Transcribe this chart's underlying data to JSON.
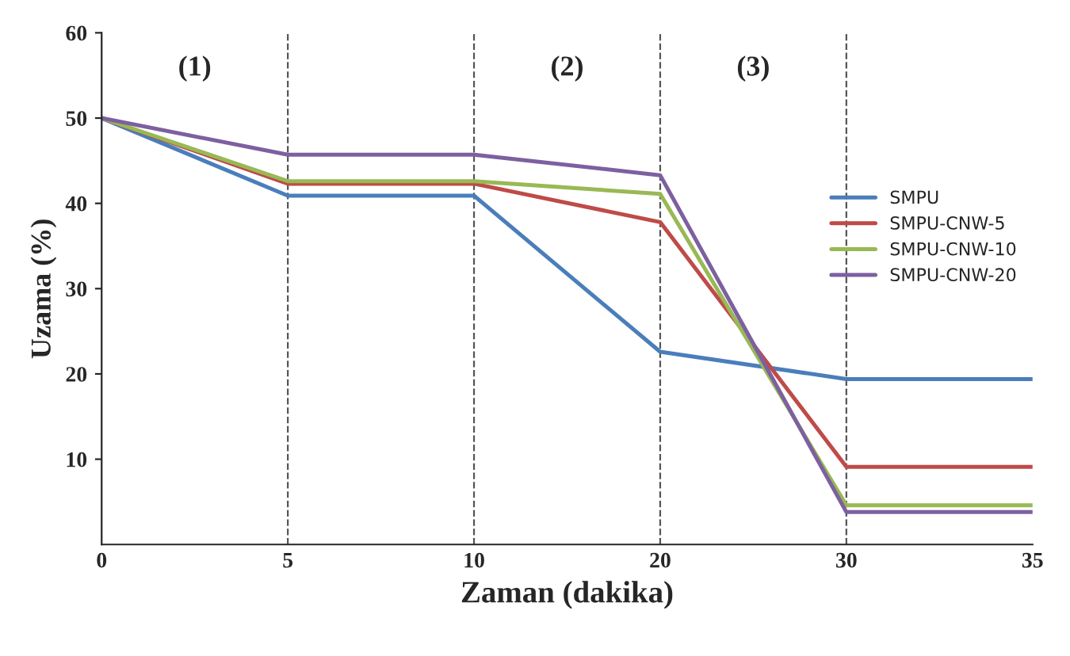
{
  "chart_data": {
    "type": "line",
    "xlabel": "Zaman (dakika)",
    "ylabel": "Uzama (%)",
    "categories": [
      "0",
      "5",
      "10",
      "20",
      "30",
      "35"
    ],
    "series": [
      {
        "name": "SMPU",
        "color": "#4a7ebb",
        "values": [
          50,
          40.9,
          40.9,
          22.6,
          19.4,
          19.4
        ]
      },
      {
        "name": "SMPU-CNW-5",
        "color": "#be4b48",
        "values": [
          50,
          42.3,
          42.3,
          37.8,
          9.1,
          9.1
        ]
      },
      {
        "name": "SMPU-CNW-10",
        "color": "#98b954",
        "values": [
          50,
          42.6,
          42.6,
          41.1,
          4.6,
          4.6
        ]
      },
      {
        "name": "SMPU-CNW-20",
        "color": "#7d60a0",
        "values": [
          50,
          45.7,
          45.7,
          43.3,
          3.8,
          3.8
        ]
      }
    ],
    "ylim": [
      0,
      60
    ],
    "yticks": [
      10,
      20,
      30,
      40,
      50,
      60
    ],
    "ref_lines": [
      {
        "axis": "x",
        "value": "5",
        "line_style": "dashed"
      },
      {
        "axis": "x",
        "value": "10",
        "line_style": "dashed"
      },
      {
        "axis": "x",
        "value": "20",
        "line_style": "dashed"
      },
      {
        "axis": "x",
        "value": "30",
        "line_style": "dashed"
      }
    ],
    "annotations": [
      "(1)",
      "(2)",
      "(3)"
    ],
    "legend": "right",
    "grid": false,
    "marker": "none",
    "line_style": "solid"
  }
}
